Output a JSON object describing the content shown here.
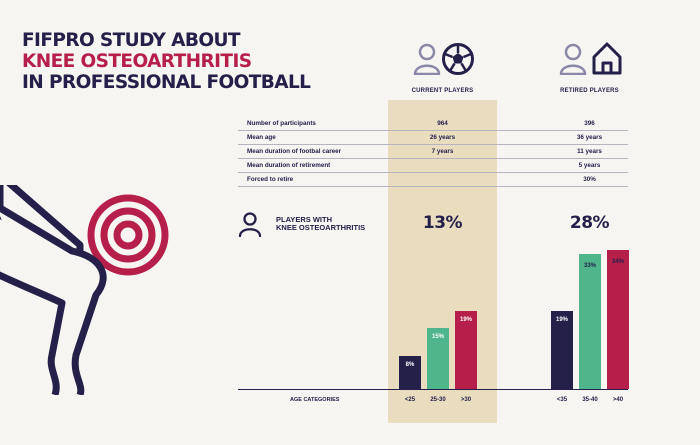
{
  "title": {
    "line1": "FIFPRO STUDY ABOUT",
    "line2": "KNEE OSTEOARTHRITIS",
    "line3": "IN PROFESSIONAL FOOTBALL"
  },
  "colors": {
    "navy": "#24204a",
    "crimson": "#b51f4a",
    "green": "#4fb58a",
    "highlight": "#e9dcbf",
    "background": "#f7f5f1"
  },
  "icons": {
    "current": [
      "person-icon",
      "football-icon"
    ],
    "retired": [
      "person-icon",
      "house-icon"
    ],
    "players_with_oa": "person-icon",
    "illustration": "knee-target-illustration"
  },
  "columns": {
    "current": "CURRENT PLAYERS",
    "retired": "RETIRED PLAYERS"
  },
  "table": [
    {
      "label": "Number of participants",
      "current": "964",
      "retired": "396"
    },
    {
      "label": "Mean age",
      "current": "26 years",
      "retired": "36 years"
    },
    {
      "label": "Mean duration of footbal career",
      "current": "7 years",
      "retired": "11 years"
    },
    {
      "label": "Mean duration of retirement",
      "current": "",
      "retired": "5 years"
    },
    {
      "label": "Forced to retire",
      "current": "",
      "retired": "30%"
    }
  ],
  "players_with_oa": {
    "label_line1": "PLAYERS WITH",
    "label_line2": "KNEE OSTEOARTHRITIS",
    "current": "13%",
    "retired": "28%"
  },
  "axis_label": "AGE CATEGORIES",
  "chart_data": {
    "type": "bar",
    "title": "",
    "xlabel": "AGE CATEGORIES",
    "ylabel": "",
    "ylim": [
      0,
      40
    ],
    "groups": [
      {
        "name": "CURRENT PLAYERS",
        "categories": [
          "<25",
          "25-30",
          ">30"
        ],
        "values": [
          8,
          15,
          19
        ],
        "labels": [
          "8%",
          "15%",
          "19%"
        ],
        "colors": [
          "#24204a",
          "#4fb58a",
          "#b51f4a"
        ]
      },
      {
        "name": "RETIRED PLAYERS",
        "categories": [
          "<35",
          "35-40",
          ">40"
        ],
        "values": [
          19,
          33,
          34
        ],
        "labels": [
          "19%",
          "33%",
          "34%"
        ],
        "colors": [
          "#24204a",
          "#4fb58a",
          "#b51f4a"
        ]
      }
    ]
  }
}
